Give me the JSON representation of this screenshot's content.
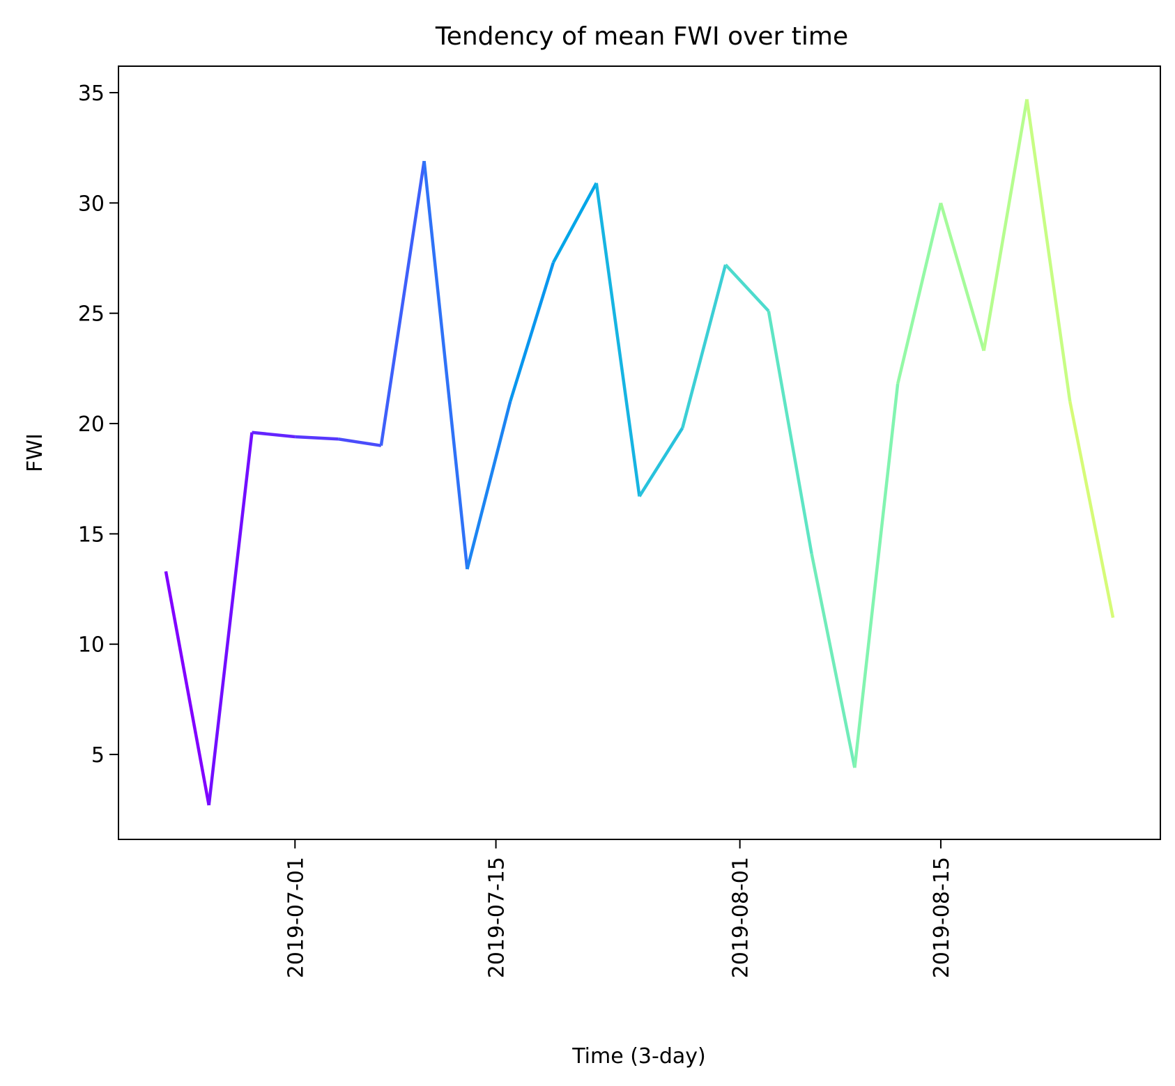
{
  "chart_data": {
    "type": "line",
    "title": "Tendency of mean FWI over time",
    "xlabel": "Time (3-day)",
    "ylabel": "FWI",
    "x": [
      "2019-06-22",
      "2019-06-25",
      "2019-06-28",
      "2019-07-01",
      "2019-07-04",
      "2019-07-07",
      "2019-07-10",
      "2019-07-13",
      "2019-07-16",
      "2019-07-19",
      "2019-07-22",
      "2019-07-25",
      "2019-07-28",
      "2019-07-31",
      "2019-08-03",
      "2019-08-06",
      "2019-08-09",
      "2019-08-12",
      "2019-08-15",
      "2019-08-18",
      "2019-08-21",
      "2019-08-24",
      "2019-08-27"
    ],
    "values": [
      13.3,
      2.7,
      19.6,
      19.4,
      19.3,
      19.0,
      31.9,
      13.4,
      21.0,
      27.3,
      30.9,
      16.7,
      19.8,
      27.2,
      25.1,
      14.1,
      4.4,
      21.8,
      30.0,
      23.3,
      34.7,
      21.0,
      11.2
    ],
    "xticks": [
      "2019-07-01",
      "2019-07-15",
      "2019-08-01",
      "2019-08-15"
    ],
    "yticks": [
      5,
      10,
      15,
      20,
      25,
      30,
      35
    ],
    "xlim": [
      "2019-06-18.7",
      "2019-08-30.3"
    ],
    "ylim": [
      1.15,
      36.2
    ],
    "colormap": "rainbow",
    "colors": [
      "#8000ff",
      "#720eff",
      "#6424fe",
      "#5738fd",
      "#4a4cfb",
      "#3d60fa",
      "#2f72f7",
      "#1c84f2",
      "#0996ee",
      "#04a6e8",
      "#16b4e2",
      "#28c2dc",
      "#3ccfd5",
      "#4ddbcd",
      "#5ee5c4",
      "#70ecba",
      "#82f4b0",
      "#94f9a6",
      "#a5fb9a",
      "#b6fd8f",
      "#c7fd84",
      "#d6fb78",
      "#e4f96b"
    ],
    "grid": false,
    "legend": false
  }
}
